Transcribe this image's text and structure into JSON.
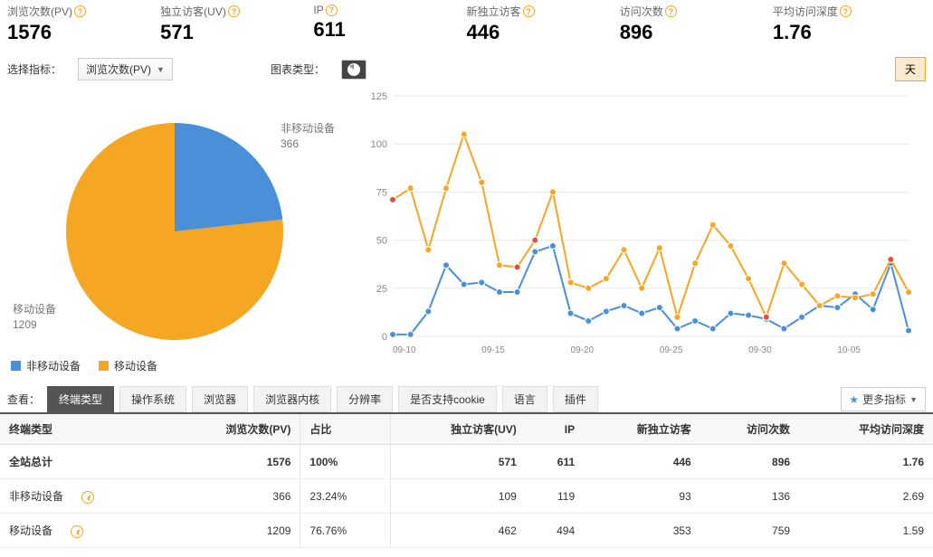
{
  "colors": {
    "blue": "#4a90d9",
    "orange": "#f5a623",
    "grid": "#e8e8e8",
    "axis": "#999"
  },
  "stats": [
    {
      "label": "浏览次数(PV)",
      "value": "1576",
      "help": true
    },
    {
      "label": "独立访客(UV)",
      "value": "571",
      "help": true
    },
    {
      "label": "IP",
      "value": "611",
      "help": true
    },
    {
      "label": "新独立访客",
      "value": "446",
      "help": true
    },
    {
      "label": "访问次数",
      "value": "896",
      "help": true
    },
    {
      "label": "平均访问深度",
      "value": "1.76",
      "help": true
    }
  ],
  "controls": {
    "select_label": "选择指标：",
    "select_value": "浏览次数(PV)",
    "chart_type_label": "图表类型：",
    "period_btn": "天"
  },
  "pie": {
    "type": "pie",
    "slices": [
      {
        "name": "非移动设备",
        "value": 366,
        "color": "#4a90d9"
      },
      {
        "name": "移动设备",
        "value": 1209,
        "color": "#f5a623"
      }
    ],
    "labels": [
      {
        "name": "非移动设备",
        "value": "366"
      },
      {
        "name": "移动设备",
        "value": "1209"
      }
    ],
    "legend": [
      {
        "color": "#4a90d9",
        "text": "非移动设备"
      },
      {
        "color": "#f5a623",
        "text": "移动设备"
      }
    ]
  },
  "line": {
    "type": "line",
    "ylim": [
      0,
      125
    ],
    "yticks": [
      0,
      25,
      50,
      75,
      100,
      125
    ],
    "xlabels": [
      "09-10",
      "",
      "",
      "",
      "",
      "09-15",
      "",
      "",
      "",
      "",
      "09-20",
      "",
      "",
      "",
      "",
      "09-25",
      "",
      "",
      "",
      "",
      "09-30",
      "",
      "",
      "",
      "",
      "10-05",
      "",
      "",
      "",
      ""
    ],
    "series": [
      {
        "name": "非移动设备",
        "color": "#4a90d9",
        "marker": "circle",
        "values": [
          1,
          1,
          13,
          37,
          27,
          28,
          23,
          23,
          44,
          47,
          12,
          8,
          13,
          16,
          12,
          15,
          4,
          8,
          4,
          12,
          11,
          9,
          4,
          10,
          16,
          15,
          22,
          14,
          38,
          3
        ]
      },
      {
        "name": "移动设备",
        "color": "#f5a623",
        "marker": "circle",
        "values": [
          71,
          77,
          45,
          77,
          105,
          80,
          37,
          36,
          50,
          75,
          28,
          25,
          30,
          45,
          25,
          46,
          10,
          38,
          58,
          47,
          30,
          10,
          38,
          27,
          16,
          21,
          20,
          22,
          40,
          23
        ],
        "dash_last": true
      }
    ],
    "red_points": [
      {
        "i": 0,
        "v": 71
      },
      {
        "i": 7,
        "v": 36
      },
      {
        "i": 8,
        "v": 50
      },
      {
        "i": 21,
        "v": 10
      },
      {
        "i": 28,
        "v": 40
      }
    ]
  },
  "tabs": {
    "label": "查看：",
    "items": [
      "终端类型",
      "操作系统",
      "浏览器",
      "浏览器内核",
      "分辨率",
      "是否支持cookie",
      "语言",
      "插件"
    ],
    "active": 0,
    "more": "更多指标"
  },
  "table": {
    "columns": [
      "终端类型",
      "浏览次数(PV)",
      "占比",
      "独立访客(UV)",
      "IP",
      "新独立访客",
      "访问次数",
      "平均访问深度"
    ],
    "rows": [
      {
        "cells": [
          "全站总计",
          "1576",
          "100%",
          "571",
          "611",
          "446",
          "896",
          "1.76"
        ],
        "total": true,
        "icon": false
      },
      {
        "cells": [
          "非移动设备",
          "366",
          "23.24%",
          "109",
          "119",
          "93",
          "136",
          "2.69"
        ],
        "icon": true
      },
      {
        "cells": [
          "移动设备",
          "1209",
          "76.76%",
          "462",
          "494",
          "353",
          "759",
          "1.59"
        ],
        "icon": true
      }
    ]
  }
}
